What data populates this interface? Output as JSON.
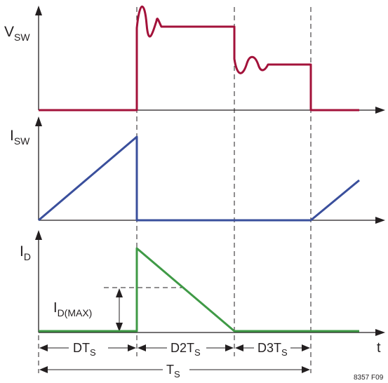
{
  "labels": {
    "vsw_main": "V",
    "vsw_sub": "SW",
    "isw_main": "I",
    "isw_sub": "SW",
    "id_main": "I",
    "id_sub": "D",
    "idmax_main": "I",
    "idmax_sub": "D(MAX)",
    "t_axis": "t",
    "dts_main": "DT",
    "dts_sub": "S",
    "d2ts_main": "D2T",
    "d2ts_sub": "S",
    "d3ts_main": "D3T",
    "d3ts_sub": "S",
    "ts_main": "T",
    "ts_sub": "S",
    "figure_id": "8357 F09"
  },
  "colors": {
    "vsw": "#a3123a",
    "isw": "#3a4f9c",
    "id": "#3f9a46",
    "ink": "#231f20"
  }
}
